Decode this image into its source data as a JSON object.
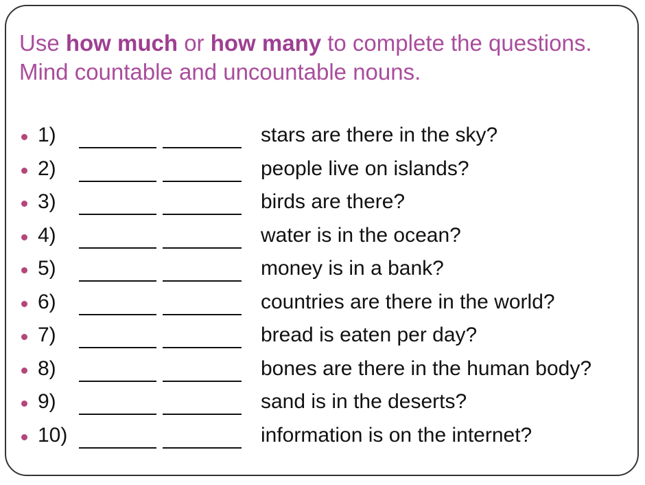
{
  "instruction": {
    "part1": "Use ",
    "bold1": "how much",
    "part2": " or ",
    "bold2": "how many",
    "part3": " to complete the questions. Mind countable and uncountable nouns."
  },
  "colors": {
    "title": "#a94c9c",
    "bullet": "#b5467a"
  },
  "questions": [
    {
      "num": "1)",
      "text": "stars are there in the sky?"
    },
    {
      "num": "2)",
      "text": "people live on islands?"
    },
    {
      "num": "3)",
      "text": "birds are there?"
    },
    {
      "num": "4)",
      "text": "water is in the ocean?"
    },
    {
      "num": "5)",
      "text": "money is in a bank?"
    },
    {
      "num": "6)",
      "text": "countries are there in the world?"
    },
    {
      "num": "7)",
      "text": "bread is eaten per day?"
    },
    {
      "num": "8)",
      "text": "bones are there in the human body?"
    },
    {
      "num": "9)",
      "text": "sand is in the deserts?"
    },
    {
      "num": "10)",
      "text": "information is on the internet?"
    }
  ]
}
